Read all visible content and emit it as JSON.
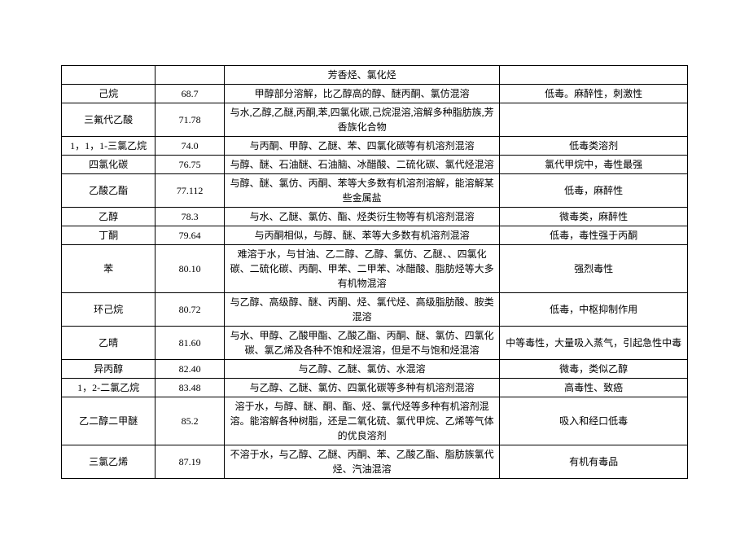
{
  "rows": [
    {
      "name": "",
      "bp": "",
      "sol": "芳香烃、氯化烃",
      "tox": ""
    },
    {
      "name": "己烷",
      "bp": "68.7",
      "sol": "甲醇部分溶解，比乙醇高的醇、醚丙酮、氯仿混溶",
      "tox": "低毒。麻醉性，刺激性"
    },
    {
      "name": "三氟代乙酸",
      "bp": "71.78",
      "sol": "与水,乙醇,乙醚,丙酮,苯,四氯化碳,己烷混溶,溶解多种脂肪族,芳香族化合物",
      "tox": ""
    },
    {
      "name": "1，1，1-三氯乙烷",
      "bp": "74.0",
      "sol": "与丙酮、甲醇、乙醚、苯、四氯化碳等有机溶剂混溶",
      "tox": "低毒类溶剂"
    },
    {
      "name": "四氯化碳",
      "bp": "76.75",
      "sol": "与醇、醚、石油醚、石油脑、冰醋酸、二硫化碳、氯代烃混溶",
      "tox": "氯代甲烷中，毒性最强"
    },
    {
      "name": "乙酸乙酯",
      "bp": "77.112",
      "sol": "与醇、醚、氯仿、丙酮、苯等大多数有机溶剂溶解，能溶解某些金属盐",
      "tox": "低毒，麻醉性"
    },
    {
      "name": "乙醇",
      "bp": "78.3",
      "sol": "与水、乙醚、氯仿、酯、烃类衍生物等有机溶剂混溶",
      "tox": "微毒类，麻醉性"
    },
    {
      "name": "丁酮",
      "bp": "79.64",
      "sol": "与丙酮相似，与醇、醚、苯等大多数有机溶剂混溶",
      "tox": "低毒，毒性强于丙酮"
    },
    {
      "name": "苯",
      "bp": "80.10",
      "sol": "难溶于水，与甘油、乙二醇、乙醇、氯仿、乙醚、、四氯化碳、二硫化碳、丙酮、甲苯、二甲苯、冰醋酸、脂肪烃等大多有机物混溶",
      "tox": "强烈毒性"
    },
    {
      "name": "环己烷",
      "bp": "80.72",
      "sol": "与乙醇、高级醇、醚、丙酮、烃、氯代烃、高级脂肪酸、胺类混溶",
      "tox": "低毒，中枢抑制作用"
    },
    {
      "name": "乙晴",
      "bp": "81.60",
      "sol": "与水、甲醇、乙酸甲酯、乙酸乙酯、丙酮、醚、氯仿、四氯化碳、氯乙烯及各种不饱和烃混溶，但是不与饱和烃混溶",
      "tox": "中等毒性，大量吸入蒸气，引起急性中毒"
    },
    {
      "name": "异丙醇",
      "bp": "82.40",
      "sol": "与乙醇、乙醚、氯仿、水混溶",
      "tox": "微毒，类似乙醇"
    },
    {
      "name": "1，2-二氯乙烷",
      "bp": "83.48",
      "sol": "与乙醇、乙醚、氯仿、四氯化碳等多种有机溶剂混溶",
      "tox": "高毒性、致癌"
    },
    {
      "name": "乙二醇二甲醚",
      "bp": "85.2",
      "sol": "溶于水，与醇、醚、酮、酯、烃、氯代烃等多种有机溶剂混溶。能溶解各种树脂，还是二氧化硫、氯代甲烷、乙烯等气体的优良溶剂",
      "tox": "吸入和经口低毒"
    },
    {
      "name": "三氯乙烯",
      "bp": "87.19",
      "sol": "不溶于水，与乙醇、乙醚、丙酮、苯、乙酸乙酯、脂肪族氯代烃、汽油混溶",
      "tox": "有机有毒品"
    }
  ]
}
